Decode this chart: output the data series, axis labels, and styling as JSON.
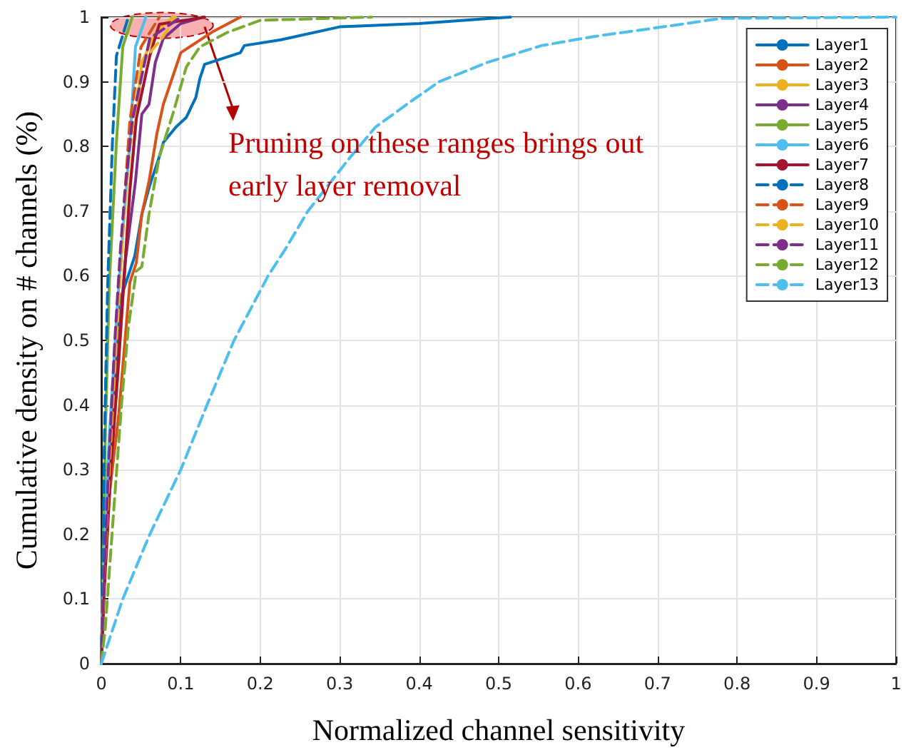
{
  "chart_data": {
    "type": "line",
    "xlabel": "Normalized channel sensitivity",
    "ylabel": "Cumulative density on # channels (%)",
    "annotations": [
      {
        "text": "Pruning on these ranges brings out early layer removal",
        "x": 0.13,
        "y": 0.985
      }
    ],
    "xlim": [
      0,
      1
    ],
    "xticks": [
      0,
      0.1,
      0.2,
      0.3,
      0.4,
      0.5,
      0.6,
      0.7,
      0.8,
      0.9,
      1
    ],
    "ylim": [
      0,
      1
    ],
    "yticks": [
      0,
      0.1,
      0.2,
      0.3,
      0.4,
      0.5,
      0.6,
      0.7,
      0.8,
      0.9,
      1
    ],
    "grid": true,
    "legend": "top right",
    "marker": "none",
    "series": [
      {
        "name": "Layer1",
        "color": "#0072bd",
        "line_style": "solid",
        "x": [
          0,
          0.002,
          0.008,
          0.017,
          0.022,
          0.042,
          0.051,
          0.061,
          0.073,
          0.078,
          0.094,
          0.107,
          0.119,
          0.124,
          0.13,
          0.175,
          0.18,
          0.226,
          0.3,
          0.4,
          0.49,
          0.515
        ],
        "values": [
          0,
          0.115,
          0.3,
          0.446,
          0.556,
          0.63,
          0.695,
          0.74,
          0.784,
          0.806,
          0.83,
          0.845,
          0.876,
          0.905,
          0.927,
          0.945,
          0.956,
          0.965,
          0.985,
          0.99,
          0.998,
          1
        ]
      },
      {
        "name": "Layer2",
        "color": "#d95319",
        "line_style": "solid",
        "x": [
          0,
          0.002,
          0.01,
          0.022,
          0.036,
          0.044,
          0.051,
          0.06,
          0.07,
          0.078,
          0.094,
          0.1,
          0.141,
          0.175
        ],
        "values": [
          0,
          0.115,
          0.26,
          0.386,
          0.59,
          0.62,
          0.695,
          0.746,
          0.82,
          0.865,
          0.923,
          0.945,
          0.978,
          1
        ]
      },
      {
        "name": "Layer3",
        "color": "#edb120",
        "line_style": "solid",
        "x": [
          0,
          0.004,
          0.012,
          0.022,
          0.03,
          0.036,
          0.044,
          0.051,
          0.07,
          0.09
        ],
        "values": [
          0,
          0.12,
          0.3,
          0.47,
          0.62,
          0.733,
          0.843,
          0.93,
          0.98,
          1
        ]
      },
      {
        "name": "Layer4",
        "color": "#7e2f8e",
        "line_style": "solid",
        "x": [
          0,
          0.003,
          0.01,
          0.02,
          0.03,
          0.043,
          0.051,
          0.06,
          0.068,
          0.078,
          0.1,
          0.128
        ],
        "values": [
          0,
          0.12,
          0.3,
          0.47,
          0.62,
          0.746,
          0.85,
          0.865,
          0.93,
          0.967,
          0.99,
          1
        ]
      },
      {
        "name": "Layer5",
        "color": "#77ac30",
        "line_style": "solid",
        "x": [
          0,
          0.002,
          0.005,
          0.01,
          0.019,
          0.027,
          0.039
        ],
        "values": [
          0,
          0.15,
          0.35,
          0.585,
          0.806,
          0.954,
          1
        ]
      },
      {
        "name": "Layer6",
        "color": "#4dbeee",
        "line_style": "solid",
        "x": [
          0,
          0.003,
          0.01,
          0.02,
          0.028,
          0.036,
          0.043,
          0.056
        ],
        "values": [
          0,
          0.15,
          0.35,
          0.55,
          0.68,
          0.806,
          0.954,
          1
        ]
      },
      {
        "name": "Layer7",
        "color": "#a2142f",
        "line_style": "solid",
        "x": [
          0,
          0.004,
          0.012,
          0.022,
          0.03,
          0.036,
          0.044,
          0.061,
          0.073,
          0.13
        ],
        "values": [
          0,
          0.12,
          0.3,
          0.47,
          0.62,
          0.733,
          0.843,
          0.94,
          0.989,
          1
        ]
      },
      {
        "name": "Layer8",
        "color": "#0072bd",
        "line_style": "dashed",
        "x": [
          0,
          0.002,
          0.004,
          0.008,
          0.014,
          0.019,
          0.034
        ],
        "values": [
          0,
          0.15,
          0.35,
          0.585,
          0.806,
          0.94,
          1
        ]
      },
      {
        "name": "Layer9",
        "color": "#d95319",
        "line_style": "dashed",
        "x": [
          0,
          0.003,
          0.01,
          0.018,
          0.027,
          0.036,
          0.05,
          0.073
        ],
        "values": [
          0,
          0.12,
          0.3,
          0.5,
          0.68,
          0.84,
          0.954,
          1
        ]
      },
      {
        "name": "Layer10",
        "color": "#edb120",
        "line_style": "dashed",
        "x": [
          0,
          0.003,
          0.01,
          0.019,
          0.028,
          0.036,
          0.051,
          0.078,
          0.093
        ],
        "values": [
          0,
          0.12,
          0.3,
          0.5,
          0.68,
          0.8,
          0.93,
          0.97,
          1
        ]
      },
      {
        "name": "Layer11",
        "color": "#7e2f8e",
        "line_style": "dashed",
        "x": [
          0,
          0.003,
          0.009,
          0.017,
          0.024,
          0.03,
          0.039,
          0.061,
          0.1
        ],
        "values": [
          0,
          0.12,
          0.3,
          0.5,
          0.64,
          0.733,
          0.84,
          0.967,
          1
        ]
      },
      {
        "name": "Layer12",
        "color": "#77ac30",
        "line_style": "dashed",
        "x": [
          0,
          0.005,
          0.017,
          0.026,
          0.034,
          0.044,
          0.051,
          0.06,
          0.073,
          0.09,
          0.107,
          0.124,
          0.158,
          0.2,
          0.34
        ],
        "values": [
          0,
          0.055,
          0.26,
          0.41,
          0.52,
          0.607,
          0.614,
          0.695,
          0.784,
          0.85,
          0.923,
          0.954,
          0.976,
          0.995,
          1
        ]
      },
      {
        "name": "Layer13",
        "color": "#4dbeee",
        "line_style": "dashed",
        "x": [
          0,
          0.027,
          0.061,
          0.1,
          0.133,
          0.167,
          0.21,
          0.231,
          0.26,
          0.311,
          0.345,
          0.39,
          0.425,
          0.486,
          0.554,
          0.62,
          0.707,
          0.78,
          1
        ],
        "values": [
          0,
          0.1,
          0.2,
          0.3,
          0.4,
          0.5,
          0.6,
          0.64,
          0.7,
          0.78,
          0.83,
          0.87,
          0.9,
          0.93,
          0.956,
          0.97,
          0.985,
          0.998,
          1
        ]
      }
    ]
  }
}
